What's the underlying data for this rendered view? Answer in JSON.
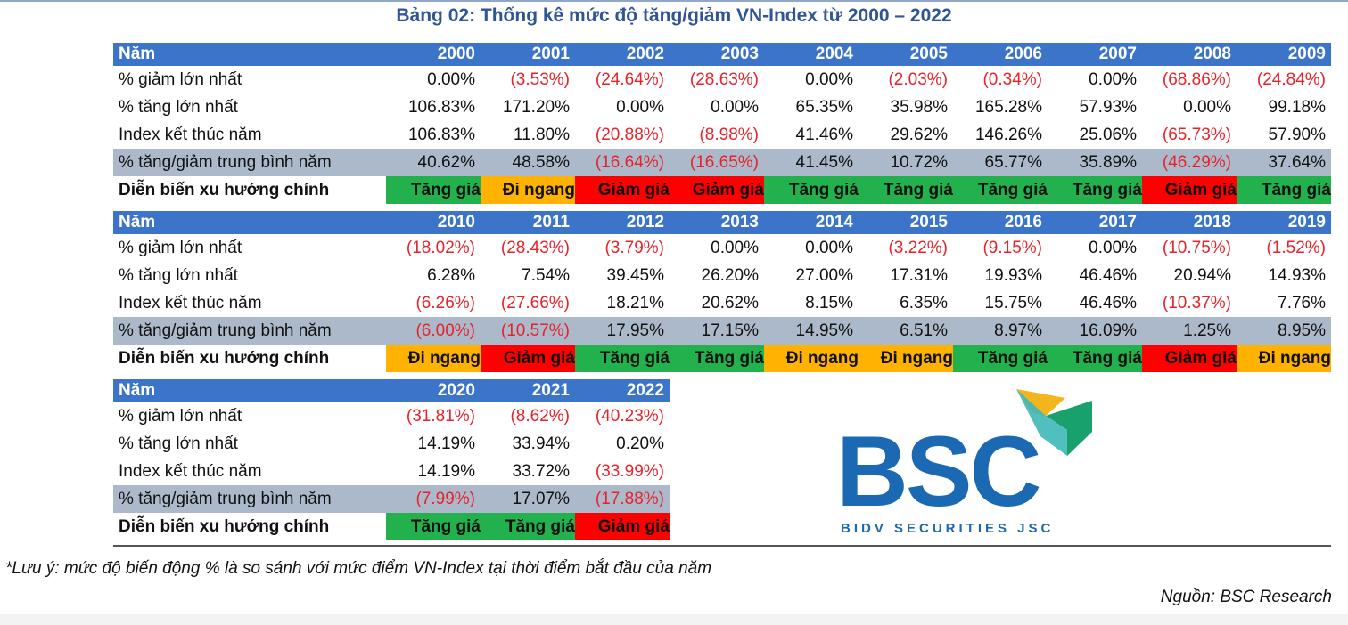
{
  "title": "Bảng 02: Thống kê mức độ tăng/giảm VN-Index từ 2000 – 2022",
  "row_labels": {
    "year": "Năm",
    "max_drop": "% giảm lớn nhất",
    "max_rise": "% tăng lớn nhất",
    "year_end": "Index kết thúc năm",
    "avg": "% tăng/giảm trung bình năm",
    "trend": "Diễn biến xu hướng chính"
  },
  "blocks": [
    {
      "years": [
        "2000",
        "2001",
        "2002",
        "2003",
        "2004",
        "2005",
        "2006",
        "2007",
        "2008",
        "2009"
      ],
      "max_drop": [
        "0.00%",
        "(3.53%)",
        "(24.64%)",
        "(28.63%)",
        "0.00%",
        "(2.03%)",
        "(0.34%)",
        "0.00%",
        "(68.86%)",
        "(24.84%)"
      ],
      "max_rise": [
        "106.83%",
        "171.20%",
        "0.00%",
        "0.00%",
        "65.35%",
        "35.98%",
        "165.28%",
        "57.93%",
        "0.00%",
        "99.18%"
      ],
      "year_end": [
        "106.83%",
        "11.80%",
        "(20.88%)",
        "(8.98%)",
        "41.46%",
        "29.62%",
        "146.26%",
        "25.06%",
        "(65.73%)",
        "57.90%"
      ],
      "avg": [
        "40.62%",
        "48.58%",
        "(16.64%)",
        "(16.65%)",
        "41.45%",
        "10.72%",
        "65.77%",
        "35.89%",
        "(46.29%)",
        "37.64%"
      ],
      "trend": [
        "Tăng giá",
        "Đi ngang",
        "Giảm giá",
        "Giảm giá",
        "Tăng giá",
        "Tăng giá",
        "Tăng giá",
        "Tăng giá",
        "Giảm giá",
        "Tăng giá"
      ]
    },
    {
      "years": [
        "2010",
        "2011",
        "2012",
        "2013",
        "2014",
        "2015",
        "2016",
        "2017",
        "2018",
        "2019"
      ],
      "max_drop": [
        "(18.02%)",
        "(28.43%)",
        "(3.79%)",
        "0.00%",
        "0.00%",
        "(3.22%)",
        "(9.15%)",
        "0.00%",
        "(10.75%)",
        "(1.52%)"
      ],
      "max_rise": [
        "6.28%",
        "7.54%",
        "39.45%",
        "26.20%",
        "27.00%",
        "17.31%",
        "19.93%",
        "46.46%",
        "20.94%",
        "14.93%"
      ],
      "year_end": [
        "(6.26%)",
        "(27.66%)",
        "18.21%",
        "20.62%",
        "8.15%",
        "6.35%",
        "15.75%",
        "46.46%",
        "(10.37%)",
        "7.76%"
      ],
      "avg": [
        "(6.00%)",
        "(10.57%)",
        "17.95%",
        "17.15%",
        "14.95%",
        "6.51%",
        "8.97%",
        "16.09%",
        "1.25%",
        "8.95%"
      ],
      "trend": [
        "Đi ngang",
        "Giảm giá",
        "Tăng giá",
        "Tăng giá",
        "Đi ngang",
        "Đi ngang",
        "Tăng giá",
        "Tăng giá",
        "Giảm giá",
        "Đi ngang"
      ]
    },
    {
      "years": [
        "2020",
        "2021",
        "2022"
      ],
      "max_drop": [
        "(31.81%)",
        "(8.62%)",
        "(40.23%)"
      ],
      "max_rise": [
        "14.19%",
        "33.94%",
        "0.20%"
      ],
      "year_end": [
        "14.19%",
        "33.72%",
        "(33.99%)"
      ],
      "avg": [
        "(7.99%)",
        "17.07%",
        "(17.88%)"
      ],
      "trend": [
        "Tăng giá",
        "Tăng giá",
        "Giảm giá"
      ]
    }
  ],
  "trend_colors": {
    "Tăng giá": "#22b14c",
    "Đi ngang": "#ffb300",
    "Giảm giá": "#ff0000"
  },
  "logo": {
    "text": "BSC",
    "subtitle": "BIDV SECURITIES JSC"
  },
  "note": "*Lưu ý: mức độ biến động % là so sánh với mức điểm VN-Index tại thời điểm bắt đầu của năm",
  "source": "Nguồn: BSC Research"
}
